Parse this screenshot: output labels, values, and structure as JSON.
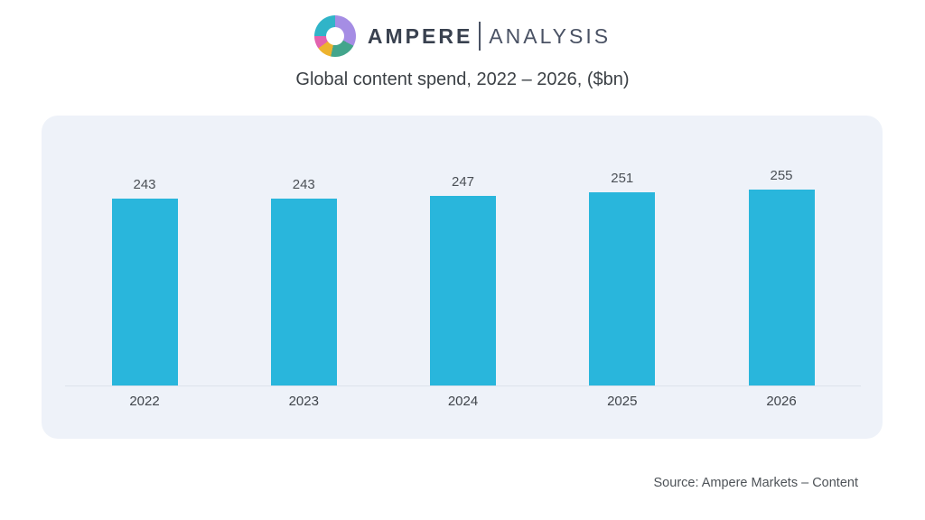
{
  "brand": {
    "name_primary": "AMPERE",
    "name_secondary": "ANALYSIS",
    "logo_colors": {
      "purple": "#a58de4",
      "green": "#43a58c",
      "yellow": "#edb32e",
      "pink": "#e263ae",
      "teal": "#30b4c8"
    },
    "logo_segments_deg": [
      {
        "color": "purple",
        "from": 0,
        "to": 118
      },
      {
        "color": "green",
        "from": 118,
        "to": 192
      },
      {
        "color": "yellow",
        "from": 192,
        "to": 234
      },
      {
        "color": "pink",
        "from": 234,
        "to": 270
      },
      {
        "color": "teal",
        "from": 270,
        "to": 360
      }
    ]
  },
  "title": "Global content spend, 2022 – 2026, ($bn)",
  "source": "Source: Ampere Markets – Content",
  "chart_data": {
    "type": "bar",
    "categories": [
      "2022",
      "2023",
      "2024",
      "2025",
      "2026"
    ],
    "values": [
      243,
      243,
      247,
      251,
      255
    ],
    "title": "Global content spend, 2022 – 2026, ($bn)",
    "xlabel": "",
    "ylabel": "",
    "ylim": [
      0,
      255
    ],
    "grid": false,
    "legend": false,
    "value_labels": true,
    "bar_color": "#29b6dc",
    "panel_background": "#eef2f9"
  }
}
